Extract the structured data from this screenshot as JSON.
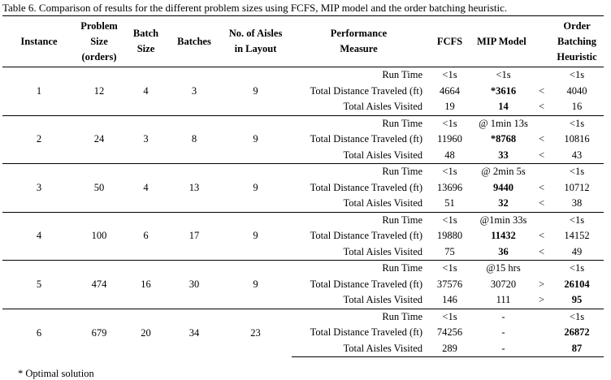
{
  "caption": "Table 6. Comparison of results for the different problem sizes using FCFS, MIP model and the order batching heuristic.",
  "headers": {
    "instance": "Instance",
    "problem_size": [
      "Problem",
      "Size",
      "(orders)"
    ],
    "batch_size": [
      "Batch",
      "Size"
    ],
    "batches": "Batches",
    "aisles": [
      "No. of Aisles",
      "in Layout"
    ],
    "measure": [
      "Performance",
      "Measure"
    ],
    "fcfs": "FCFS",
    "mip": "MIP Model",
    "heuristic": [
      "Order",
      "Batching",
      "Heuristic"
    ]
  },
  "groups": [
    {
      "instance": "1",
      "size": "12",
      "batch_size": "4",
      "batches": "3",
      "aisles": "9",
      "rows": [
        {
          "measure": "Run Time",
          "fcfs": "<1s",
          "mip": "<1s",
          "cmp": "",
          "heur": "<1s",
          "mip_bold": false,
          "heur_bold": false
        },
        {
          "measure": "Total Distance Traveled (ft)",
          "fcfs": "4664",
          "mip": "*3616",
          "cmp": "<",
          "heur": "4040",
          "mip_bold": true,
          "heur_bold": false
        },
        {
          "measure": "Total Aisles Visited",
          "fcfs": "19",
          "mip": "14",
          "cmp": "<",
          "heur": "16",
          "mip_bold": true,
          "heur_bold": false
        }
      ]
    },
    {
      "instance": "2",
      "size": "24",
      "batch_size": "3",
      "batches": "8",
      "aisles": "9",
      "rows": [
        {
          "measure": "Run Time",
          "fcfs": "<1s",
          "mip": "@ 1min 13s",
          "cmp": "",
          "heur": "<1s",
          "mip_bold": false,
          "heur_bold": false
        },
        {
          "measure": "Total Distance Traveled (ft)",
          "fcfs": "11960",
          "mip": "*8768",
          "cmp": "<",
          "heur": "10816",
          "mip_bold": true,
          "heur_bold": false
        },
        {
          "measure": "Total Aisles Visited",
          "fcfs": "48",
          "mip": "33",
          "cmp": "<",
          "heur": "43",
          "mip_bold": true,
          "heur_bold": false
        }
      ]
    },
    {
      "instance": "3",
      "size": "50",
      "batch_size": "4",
      "batches": "13",
      "aisles": "9",
      "rows": [
        {
          "measure": "Run Time",
          "fcfs": "<1s",
          "mip": "@ 2min 5s",
          "cmp": "",
          "heur": "<1s",
          "mip_bold": false,
          "heur_bold": false
        },
        {
          "measure": "Total Distance Traveled (ft)",
          "fcfs": "13696",
          "mip": "9440",
          "cmp": "<",
          "heur": "10712",
          "mip_bold": true,
          "heur_bold": false
        },
        {
          "measure": "Total Aisles Visited",
          "fcfs": "51",
          "mip": "32",
          "cmp": "<",
          "heur": "38",
          "mip_bold": true,
          "heur_bold": false
        }
      ]
    },
    {
      "instance": "4",
      "size": "100",
      "batch_size": "6",
      "batches": "17",
      "aisles": "9",
      "rows": [
        {
          "measure": "Run Time",
          "fcfs": "<1s",
          "mip": "@1min 33s",
          "cmp": "",
          "heur": "<1s",
          "mip_bold": false,
          "heur_bold": false
        },
        {
          "measure": "Total Distance Traveled (ft)",
          "fcfs": "19880",
          "mip": "11432",
          "cmp": "<",
          "heur": "14152",
          "mip_bold": true,
          "heur_bold": false
        },
        {
          "measure": "Total Aisles Visited",
          "fcfs": "75",
          "mip": "36",
          "cmp": "<",
          "heur": "49",
          "mip_bold": true,
          "heur_bold": false
        }
      ]
    },
    {
      "instance": "5",
      "size": "474",
      "batch_size": "16",
      "batches": "30",
      "aisles": "9",
      "rows": [
        {
          "measure": "Run Time",
          "fcfs": "<1s",
          "mip": "@15 hrs",
          "cmp": "",
          "heur": "<1s",
          "mip_bold": false,
          "heur_bold": false
        },
        {
          "measure": "Total Distance Traveled (ft)",
          "fcfs": "37576",
          "mip": "30720",
          "cmp": ">",
          "heur": "26104",
          "mip_bold": false,
          "heur_bold": true
        },
        {
          "measure": "Total Aisles Visited",
          "fcfs": "146",
          "mip": "111",
          "cmp": ">",
          "heur": "95",
          "mip_bold": false,
          "heur_bold": true
        }
      ]
    },
    {
      "instance": "6",
      "size": "679",
      "batch_size": "20",
      "batches": "34",
      "aisles": "23",
      "rows": [
        {
          "measure": "Run Time",
          "fcfs": "<1s",
          "mip": "-",
          "cmp": "",
          "heur": "<1s",
          "mip_bold": false,
          "heur_bold": false
        },
        {
          "measure": "Total Distance Traveled (ft)",
          "fcfs": "74256",
          "mip": "-",
          "cmp": "",
          "heur": "26872",
          "mip_bold": false,
          "heur_bold": true
        },
        {
          "measure": "Total Aisles Visited",
          "fcfs": "289",
          "mip": "-",
          "cmp": "",
          "heur": "87",
          "mip_bold": false,
          "heur_bold": true
        }
      ]
    }
  ],
  "footnote": "* Optimal solution"
}
